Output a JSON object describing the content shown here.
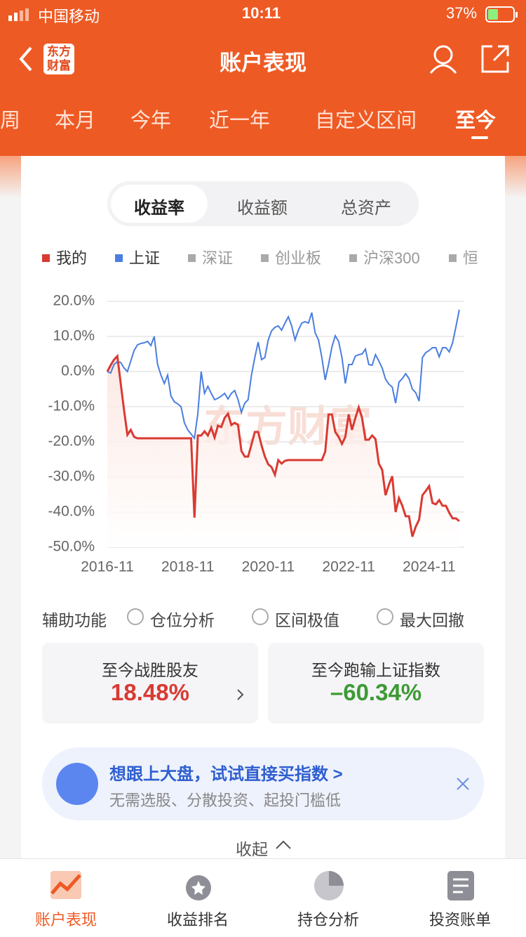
{
  "status_bar": {
    "carrier": "中国移动",
    "time": "10:11",
    "battery": "37%"
  },
  "header": {
    "logo": [
      "东方",
      "财富"
    ],
    "title": "账户表现"
  },
  "period_tabs": [
    "周",
    "本月",
    "今年",
    "近一年",
    "自定义区间",
    "至今"
  ],
  "metric_tabs": [
    "收益率",
    "收益额",
    "总资产"
  ],
  "chart_data": {
    "type": "line",
    "watermark": "东方财富",
    "legend_extra": [
      "深证",
      "创业板",
      "沪深300",
      "恒"
    ],
    "x": [
      "2016-11",
      "2016-12",
      "2017-01",
      "2017-02",
      "2017-03",
      "2017-04",
      "2017-05",
      "2017-06",
      "2017-07",
      "2017-08",
      "2017-09",
      "2017-10",
      "2017-11",
      "2017-12",
      "2018-01",
      "2018-02",
      "2018-03",
      "2018-04",
      "2018-05",
      "2018-06",
      "2018-07",
      "2018-08",
      "2018-09",
      "2018-10",
      "2018-11",
      "2018-12",
      "2019-01",
      "2019-02",
      "2019-03",
      "2019-04",
      "2019-05",
      "2019-06",
      "2019-07",
      "2019-08",
      "2019-09",
      "2019-10",
      "2019-11",
      "2019-12",
      "2020-01",
      "2020-02",
      "2020-03",
      "2020-04",
      "2020-05",
      "2020-06",
      "2020-07",
      "2020-08",
      "2020-09",
      "2020-10",
      "2020-11",
      "2020-12",
      "2021-01",
      "2021-02",
      "2021-03",
      "2021-04",
      "2021-05",
      "2021-06",
      "2021-07",
      "2021-08",
      "2021-09",
      "2021-10",
      "2021-11",
      "2021-12",
      "2022-01",
      "2022-02",
      "2022-03",
      "2022-04",
      "2022-05",
      "2022-06",
      "2022-07",
      "2022-08",
      "2022-09",
      "2022-10",
      "2022-11",
      "2022-12",
      "2023-01",
      "2023-02",
      "2023-03",
      "2023-04",
      "2023-05",
      "2023-06",
      "2023-07",
      "2023-08",
      "2023-09",
      "2023-10",
      "2023-11",
      "2023-12",
      "2024-01",
      "2024-02",
      "2024-03",
      "2024-04",
      "2024-05",
      "2024-06",
      "2024-07",
      "2024-08",
      "2024-09",
      "2024-10",
      "2024-11",
      "2024-12",
      "2025-01",
      "2025-02",
      "2025-03",
      "2025-04",
      "2025-05",
      "2025-06",
      "2025-07",
      "2025-08"
    ],
    "xticks": [
      "2016-11",
      "2018-11",
      "2020-11",
      "2022-11",
      "2024-11"
    ],
    "ylim": [
      -50,
      20
    ],
    "yticks": [
      {
        "value": 20,
        "label": "20.0%"
      },
      {
        "value": 10,
        "label": "10.0%"
      },
      {
        "value": 0,
        "label": "0.0%"
      },
      {
        "value": -10,
        "label": "-10.0%"
      },
      {
        "value": -20,
        "label": "-20.0%"
      },
      {
        "value": -30,
        "label": "-30.0%"
      },
      {
        "value": -40,
        "label": "-40.0%"
      },
      {
        "value": -50,
        "label": "-50.0%"
      }
    ],
    "grid": true,
    "series": [
      {
        "name": "我的",
        "color": "#d93a32",
        "values": [
          0,
          1.8,
          3.4,
          4.4,
          -3.4,
          -11,
          -18,
          -16.6,
          -18.6,
          -19,
          -19,
          -19,
          -19,
          -19,
          -19,
          -19,
          -19,
          -19,
          -19,
          -19,
          -19,
          -19,
          -19,
          -19,
          -19,
          -19,
          -41.6,
          -18.2,
          -18.2,
          -17,
          -18.2,
          -16,
          -18.8,
          -15.4,
          -15.8,
          -13.2,
          -12,
          -15.2,
          -14.6,
          -15.2,
          -22.6,
          -24.2,
          -24.2,
          -20.8,
          -17.2,
          -17.2,
          -21,
          -24.2,
          -26.4,
          -27.2,
          -29.4,
          -25.2,
          -26.2,
          -25.4,
          -25.2,
          -25.2,
          -25.2,
          -25.2,
          -25.2,
          -25.2,
          -25.2,
          -25.2,
          -25.2,
          -25.2,
          -25.2,
          -22.8,
          -12.2,
          -12.2,
          -17.2,
          -18.6,
          -20.6,
          -18.6,
          -12.2,
          -16.6,
          -13.2,
          -10.2,
          -13.2,
          -19.4,
          -19.4,
          -18.2,
          -19.2,
          -26.2,
          -28,
          -35.2,
          -32.2,
          -29.8,
          -40,
          -36,
          -38.2,
          -41.2,
          -41.2,
          -47,
          -44.2,
          -42.2,
          -35.2,
          -34,
          -32.6,
          -37.4,
          -37.8,
          -36.6,
          -38.2,
          -38.2,
          -40.2,
          -41.8,
          -41.8,
          -42.6
        ]
      },
      {
        "name": "上证",
        "color": "#4a7ee0",
        "values": [
          0,
          -0.4,
          2,
          2.8,
          2.6,
          1,
          0,
          3,
          6,
          7.6,
          8,
          8.2,
          8.6,
          7.4,
          10,
          2,
          -1,
          -3.4,
          -1,
          -7,
          -8.6,
          -9.2,
          -10,
          -14.6,
          -16.6,
          -17.8,
          -19,
          -12,
          0,
          -6.2,
          -4.2,
          -6.2,
          -8,
          -7.6,
          -7,
          -6.2,
          -7.8,
          -6.2,
          -5.4,
          -8,
          -11.6,
          -9,
          -8,
          -1,
          4,
          8.4,
          3.4,
          4,
          9,
          11.6,
          12.6,
          13,
          11.8,
          13.8,
          15.6,
          13,
          9,
          11.8,
          13.8,
          14.2,
          13.8,
          16.8,
          11,
          9,
          4,
          -2.4,
          2,
          7,
          10.2,
          8.6,
          4,
          -3.4,
          2,
          2,
          4.4,
          4.8,
          5,
          6.4,
          2,
          1.8,
          4.8,
          3,
          1,
          -2.2,
          -3.6,
          -4.4,
          -9,
          -3,
          -2,
          -0.6,
          -2,
          -5,
          -6,
          -8.4,
          4,
          5.4,
          6,
          6.8,
          6.8,
          4.2,
          6.8,
          6.8,
          5.6,
          8.2,
          12.8,
          17.6
        ]
      }
    ]
  },
  "aux": {
    "label": "辅助功能",
    "options": [
      "仓位分析",
      "区间极值",
      "最大回撤"
    ]
  },
  "cards": [
    {
      "label": "至今战胜股友",
      "value": "18.48%"
    },
    {
      "label": "至今跑输上证指数",
      "value": "–60.34%"
    }
  ],
  "promo": {
    "title": "想跟上大盘，试试直接买指数 >",
    "subtitle": "无需选股、分散投资、起投门槛低"
  },
  "collapse": "收起",
  "bottom_nav": [
    "账户表现",
    "收益排名",
    "持仓分析",
    "投资账单"
  ]
}
